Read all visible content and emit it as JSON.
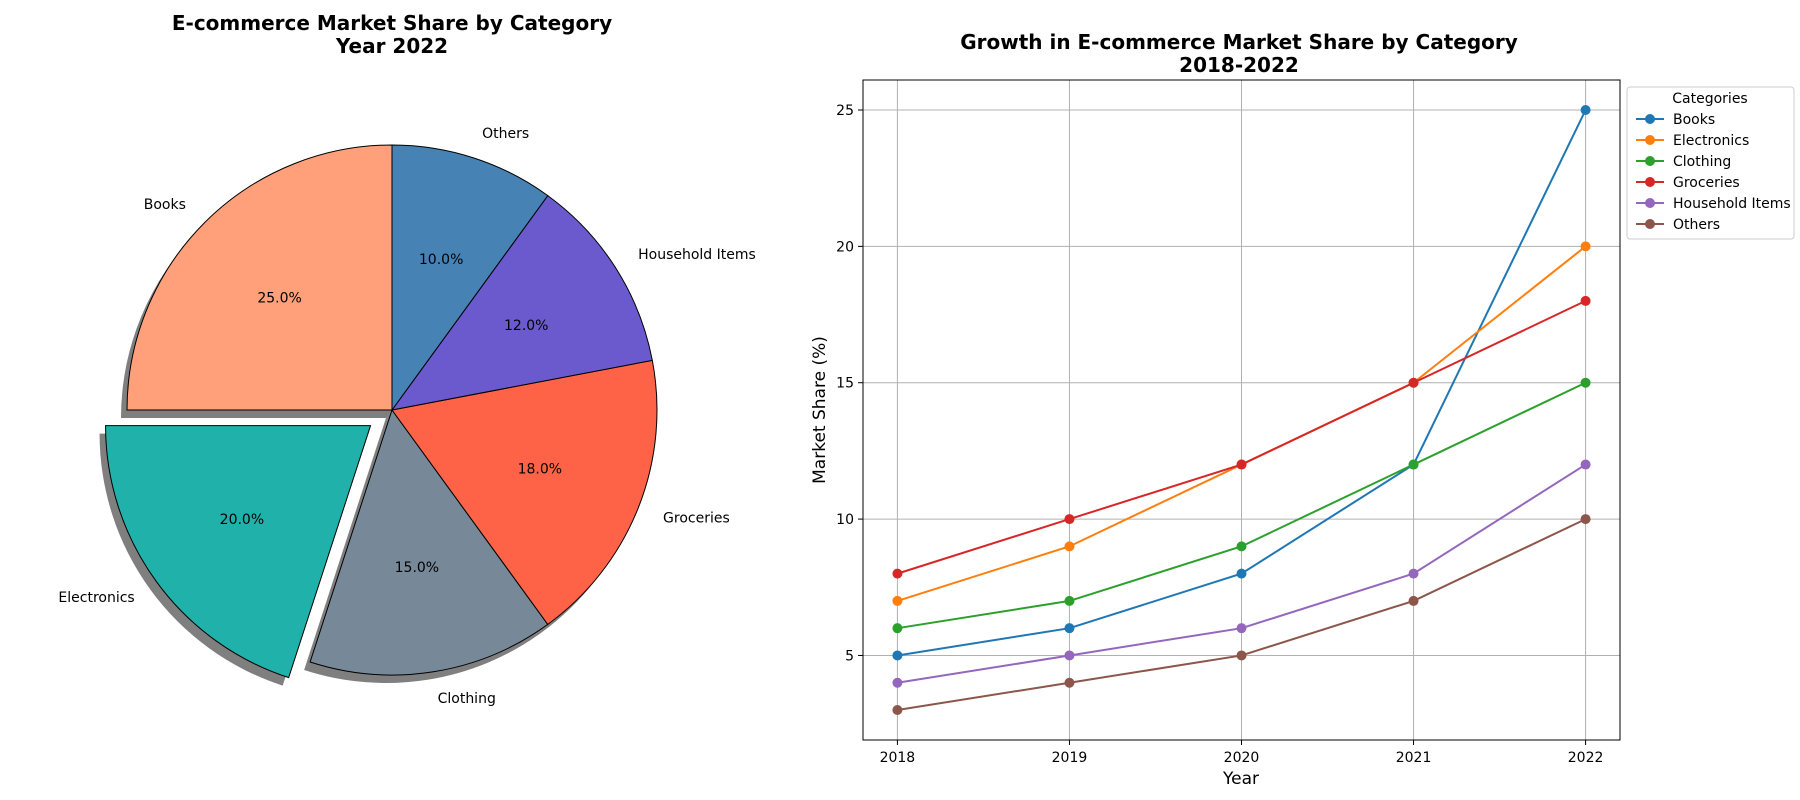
{
  "chart_data": [
    {
      "type": "pie",
      "title": "E-commerce Market Share by Category",
      "subtitle": "Year 2022",
      "labels": [
        "Books",
        "Electronics",
        "Clothing",
        "Groceries",
        "Household Items",
        "Others"
      ],
      "values": [
        25,
        20,
        15,
        18,
        12,
        10
      ],
      "value_labels": [
        "25.0%",
        "20.0%",
        "15.0%",
        "18.0%",
        "12.0%",
        "10.0%"
      ],
      "colors": [
        "#FFA07A",
        "#20B2AA",
        "#778899",
        "#FF6347",
        "#6A5ACD",
        "#4682B4"
      ],
      "exploded": "Electronics",
      "start_angle_deg": 90,
      "shadow": true
    },
    {
      "type": "line",
      "title": "Growth in E-commerce Market Share by Category",
      "subtitle": "2018-2022",
      "xlabel": "Year",
      "ylabel": "Market Share (%)",
      "x": [
        2018,
        2019,
        2020,
        2021,
        2022
      ],
      "xticks": [
        "2018",
        "2019",
        "2020",
        "2021",
        "2022"
      ],
      "yticks": [
        "5",
        "10",
        "15",
        "20",
        "25"
      ],
      "xlim": [
        2017.8,
        2022.2
      ],
      "ylim": [
        1.9,
        26.1
      ],
      "grid": true,
      "legend_title": "Categories",
      "legend_placement": "outside-top-right",
      "series": [
        {
          "name": "Books",
          "values": [
            5,
            6,
            8,
            12,
            25
          ],
          "color": "#1f77b4"
        },
        {
          "name": "Electronics",
          "values": [
            7,
            9,
            12,
            15,
            20
          ],
          "color": "#ff7f0e"
        },
        {
          "name": "Clothing",
          "values": [
            6,
            7,
            9,
            12,
            15
          ],
          "color": "#2ca02c"
        },
        {
          "name": "Groceries",
          "values": [
            8,
            10,
            12,
            15,
            18
          ],
          "color": "#d62728"
        },
        {
          "name": "Household Items",
          "values": [
            4,
            5,
            6,
            8,
            12
          ],
          "color": "#9467bd"
        },
        {
          "name": "Others",
          "values": [
            3,
            4,
            5,
            7,
            10
          ],
          "color": "#8c564b"
        }
      ]
    }
  ]
}
